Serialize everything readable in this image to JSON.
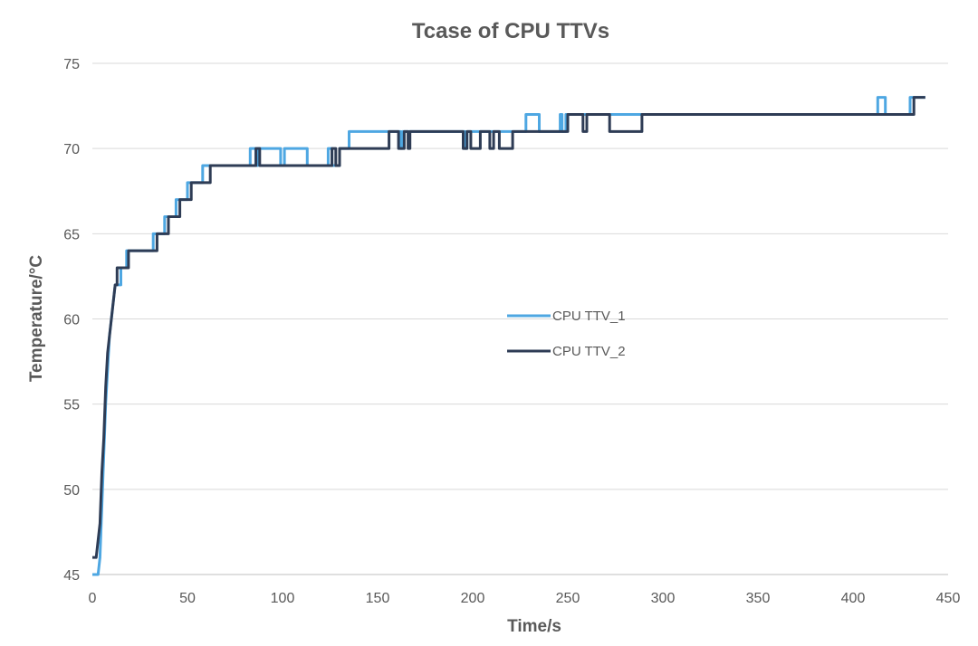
{
  "chart_data": {
    "type": "line",
    "title": "Tcase of CPU TTVs",
    "xlabel": "Time/s",
    "ylabel": "Temperature/°C",
    "xlim": [
      0,
      450
    ],
    "ylim": [
      45,
      75
    ],
    "xticks": [
      0,
      50,
      100,
      150,
      200,
      250,
      300,
      350,
      400,
      450
    ],
    "yticks": [
      45,
      50,
      55,
      60,
      65,
      70,
      75
    ],
    "grid": true,
    "legend_position": "center",
    "series": [
      {
        "name": "CPU TTV_1",
        "color": "#4ea7e2",
        "points": [
          [
            0,
            45
          ],
          [
            3,
            45
          ],
          [
            4,
            46
          ],
          [
            5,
            49
          ],
          [
            6,
            52
          ],
          [
            7,
            55
          ],
          [
            8,
            57
          ],
          [
            9,
            59
          ],
          [
            10,
            60
          ],
          [
            11,
            61
          ],
          [
            12,
            62
          ],
          [
            15,
            62
          ],
          [
            15,
            63
          ],
          [
            18,
            63
          ],
          [
            18,
            64
          ],
          [
            32,
            64
          ],
          [
            32,
            65
          ],
          [
            38,
            65
          ],
          [
            38,
            66
          ],
          [
            44,
            66
          ],
          [
            44,
            67
          ],
          [
            50,
            67
          ],
          [
            50,
            68
          ],
          [
            58,
            68
          ],
          [
            58,
            69
          ],
          [
            83,
            69
          ],
          [
            83,
            70
          ],
          [
            86,
            70
          ],
          [
            86,
            69
          ],
          [
            87,
            69
          ],
          [
            87,
            70
          ],
          [
            99,
            70
          ],
          [
            99,
            69
          ],
          [
            101,
            69
          ],
          [
            101,
            70
          ],
          [
            113,
            70
          ],
          [
            113,
            69
          ],
          [
            124,
            69
          ],
          [
            124,
            70
          ],
          [
            126,
            70
          ],
          [
            126,
            69
          ],
          [
            130,
            69
          ],
          [
            130,
            70
          ],
          [
            135,
            70
          ],
          [
            135,
            71
          ],
          [
            162,
            71
          ],
          [
            162,
            70
          ],
          [
            163,
            70
          ],
          [
            163,
            71
          ],
          [
            196,
            71
          ],
          [
            196,
            70
          ],
          [
            197,
            70
          ],
          [
            197,
            71
          ],
          [
            228,
            71
          ],
          [
            228,
            72
          ],
          [
            235,
            72
          ],
          [
            235,
            71
          ],
          [
            246,
            71
          ],
          [
            246,
            72
          ],
          [
            247,
            72
          ],
          [
            247,
            71
          ],
          [
            249,
            71
          ],
          [
            249,
            72
          ],
          [
            413,
            72
          ],
          [
            413,
            73
          ],
          [
            417,
            73
          ],
          [
            417,
            72
          ],
          [
            430,
            72
          ],
          [
            430,
            73
          ],
          [
            438,
            73
          ]
        ]
      },
      {
        "name": "CPU TTV_2",
        "color": "#2e3c55",
        "points": [
          [
            0,
            46
          ],
          [
            2,
            46
          ],
          [
            3,
            47
          ],
          [
            4,
            48
          ],
          [
            5,
            51
          ],
          [
            6,
            53
          ],
          [
            7,
            56
          ],
          [
            8,
            58
          ],
          [
            9,
            59
          ],
          [
            10,
            60
          ],
          [
            11,
            61
          ],
          [
            12,
            62
          ],
          [
            13,
            62
          ],
          [
            13,
            63
          ],
          [
            19,
            63
          ],
          [
            19,
            64
          ],
          [
            34,
            64
          ],
          [
            34,
            65
          ],
          [
            40,
            65
          ],
          [
            40,
            66
          ],
          [
            46,
            66
          ],
          [
            46,
            67
          ],
          [
            52,
            67
          ],
          [
            52,
            68
          ],
          [
            62,
            68
          ],
          [
            62,
            69
          ],
          [
            86,
            69
          ],
          [
            86,
            70
          ],
          [
            88,
            70
          ],
          [
            88,
            69
          ],
          [
            126,
            69
          ],
          [
            126,
            70
          ],
          [
            128,
            70
          ],
          [
            128,
            69
          ],
          [
            130,
            69
          ],
          [
            130,
            70
          ],
          [
            156,
            70
          ],
          [
            156,
            71
          ],
          [
            161,
            71
          ],
          [
            161,
            70
          ],
          [
            164,
            70
          ],
          [
            164,
            71
          ],
          [
            166,
            71
          ],
          [
            166,
            70
          ],
          [
            167,
            70
          ],
          [
            167,
            71
          ],
          [
            195,
            71
          ],
          [
            195,
            70
          ],
          [
            197,
            70
          ],
          [
            197,
            71
          ],
          [
            199,
            71
          ],
          [
            199,
            70
          ],
          [
            204,
            70
          ],
          [
            204,
            71
          ],
          [
            209,
            71
          ],
          [
            209,
            70
          ],
          [
            211,
            70
          ],
          [
            211,
            71
          ],
          [
            214,
            71
          ],
          [
            214,
            70
          ],
          [
            221,
            70
          ],
          [
            221,
            71
          ],
          [
            250,
            71
          ],
          [
            250,
            72
          ],
          [
            258,
            72
          ],
          [
            258,
            71
          ],
          [
            260,
            71
          ],
          [
            260,
            72
          ],
          [
            272,
            72
          ],
          [
            272,
            71
          ],
          [
            289,
            71
          ],
          [
            289,
            72
          ],
          [
            432,
            72
          ],
          [
            432,
            73
          ],
          [
            438,
            73
          ]
        ]
      }
    ]
  }
}
